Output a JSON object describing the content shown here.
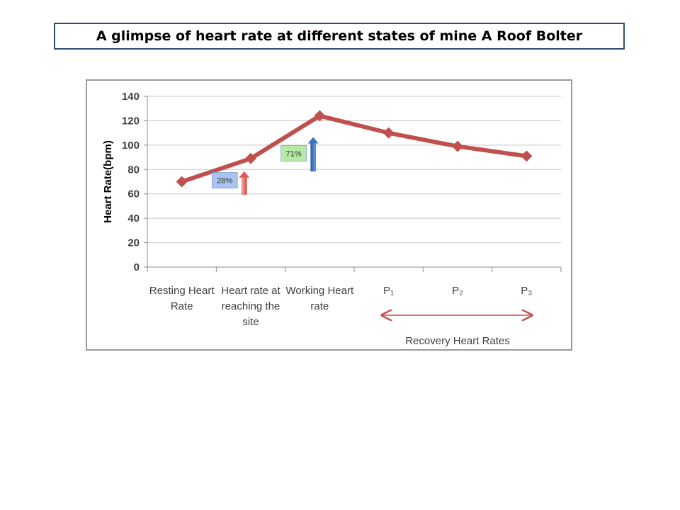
{
  "title": "A glimpse of heart rate at different states of mine A Roof Bolter",
  "chart_data": {
    "type": "line",
    "categories": [
      [
        "Resting Heart",
        "Rate"
      ],
      [
        "Heart rate at",
        "reaching the",
        "site"
      ],
      [
        "Working Heart",
        "rate"
      ],
      [
        "P₁"
      ],
      [
        "P₂"
      ],
      [
        "P₃"
      ]
    ],
    "series": [
      {
        "values": [
          70,
          89,
          124,
          110,
          99,
          91
        ]
      }
    ],
    "ylabel": "Heart Rate(bpm)",
    "ylim": [
      0,
      140
    ],
    "yticks": [
      0,
      20,
      40,
      60,
      80,
      100,
      120,
      140
    ],
    "grid": true,
    "line_color": "#c0504d",
    "annotations": [
      {
        "label": "28%",
        "arrow_color": "#e05a5a",
        "box_color": "#a9c4f2",
        "between": [
          0,
          1
        ]
      },
      {
        "label": "71%",
        "arrow_color": "#3f6fc0",
        "box_color": "#b6e8a6",
        "between": [
          1,
          2
        ]
      }
    ],
    "bracket_label": "Recovery Heart Rates",
    "bracket_color": "#c0504d"
  }
}
